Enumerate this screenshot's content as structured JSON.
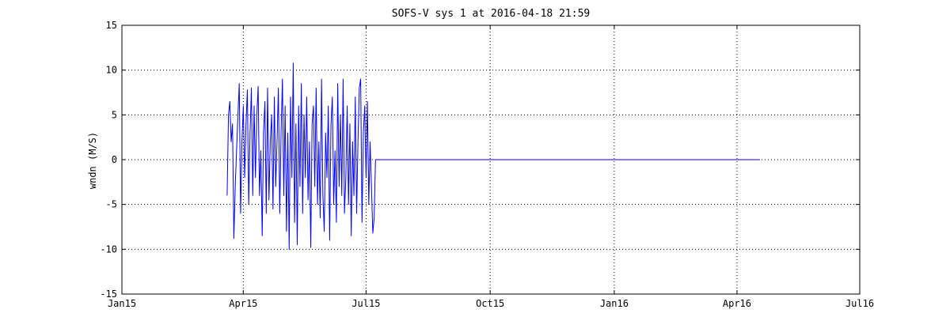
{
  "chart_data": {
    "type": "line",
    "title": "SOFS-V sys 1 at 2016-04-18 21:59",
    "xlabel": "",
    "ylabel": "wndn (M/S)",
    "xlim": [
      "2015-01-01",
      "2016-07-01"
    ],
    "ylim": [
      -15,
      15
    ],
    "x_ticks": [
      {
        "date": "2015-01-01",
        "label": "Jan15"
      },
      {
        "date": "2015-04-01",
        "label": "Apr15"
      },
      {
        "date": "2015-07-01",
        "label": "Jul15"
      },
      {
        "date": "2015-10-01",
        "label": "Oct15"
      },
      {
        "date": "2016-01-01",
        "label": "Jan16"
      },
      {
        "date": "2016-04-01",
        "label": "Apr16"
      },
      {
        "date": "2016-07-01",
        "label": "Jul16"
      }
    ],
    "y_ticks": [
      -15,
      -10,
      -5,
      0,
      5,
      10,
      15
    ],
    "grid": true,
    "line_color": "#0000ff",
    "series": [
      {
        "x": [
          "2015-03-20",
          "2015-03-21",
          "2015-03-22",
          "2015-03-23",
          "2015-03-24",
          "2015-03-25",
          "2015-03-26",
          "2015-03-27",
          "2015-03-28",
          "2015-03-29",
          "2015-03-30",
          "2015-03-31",
          "2015-04-01",
          "2015-04-02",
          "2015-04-03",
          "2015-04-04",
          "2015-04-05",
          "2015-04-06",
          "2015-04-07",
          "2015-04-08",
          "2015-04-09",
          "2015-04-10",
          "2015-04-11",
          "2015-04-12",
          "2015-04-13",
          "2015-04-14",
          "2015-04-15",
          "2015-04-16",
          "2015-04-17",
          "2015-04-18",
          "2015-04-19",
          "2015-04-20",
          "2015-04-21",
          "2015-04-22",
          "2015-04-23",
          "2015-04-24",
          "2015-04-25",
          "2015-04-26",
          "2015-04-27",
          "2015-04-28",
          "2015-04-29",
          "2015-04-30",
          "2015-05-01",
          "2015-05-02",
          "2015-05-03",
          "2015-05-04",
          "2015-05-05",
          "2015-05-06",
          "2015-05-07",
          "2015-05-08",
          "2015-05-09",
          "2015-05-10",
          "2015-05-11",
          "2015-05-12",
          "2015-05-13",
          "2015-05-14",
          "2015-05-15",
          "2015-05-16",
          "2015-05-17",
          "2015-05-18",
          "2015-05-19",
          "2015-05-20",
          "2015-05-21",
          "2015-05-22",
          "2015-05-23",
          "2015-05-24",
          "2015-05-25",
          "2015-05-26",
          "2015-05-27",
          "2015-05-28",
          "2015-05-29",
          "2015-05-30",
          "2015-05-31",
          "2015-06-01",
          "2015-06-02",
          "2015-06-03",
          "2015-06-04",
          "2015-06-05",
          "2015-06-06",
          "2015-06-07",
          "2015-06-08",
          "2015-06-09",
          "2015-06-10",
          "2015-06-11",
          "2015-06-12",
          "2015-06-13",
          "2015-06-14",
          "2015-06-15",
          "2015-06-16",
          "2015-06-17",
          "2015-06-18",
          "2015-06-19",
          "2015-06-20",
          "2015-06-21",
          "2015-06-22",
          "2015-06-23",
          "2015-06-24",
          "2015-06-25",
          "2015-06-26",
          "2015-06-27",
          "2015-06-28",
          "2015-06-29",
          "2015-06-30",
          "2015-07-01",
          "2015-07-02",
          "2015-07-03",
          "2015-07-04",
          "2015-07-05",
          "2015-07-06",
          "2015-07-07",
          "2015-07-08",
          "2015-07-09",
          "2016-04-18"
        ],
        "y": [
          -4,
          5,
          6.5,
          2,
          4,
          -8.8,
          -3,
          1,
          5,
          8.5,
          -6,
          2,
          6,
          -2,
          4,
          7.8,
          -5,
          3,
          8,
          -4,
          6,
          -2,
          5,
          8.2,
          -4,
          1,
          -8.5,
          3,
          6.5,
          -6,
          8,
          -4.5,
          2,
          5,
          -5.5,
          7,
          -3,
          2,
          8,
          -6,
          3,
          9,
          -4,
          6,
          -8,
          3,
          -10,
          7,
          -2,
          10.8,
          -7,
          4,
          -9.5,
          6,
          -3,
          8.5,
          -6,
          5,
          -2,
          7,
          -4.5,
          2,
          -9.8,
          4,
          6,
          -3,
          8,
          -5,
          2,
          -6.5,
          9,
          -4,
          -8,
          3,
          -2,
          6,
          -9,
          4,
          7,
          -5,
          1,
          -7,
          8.5,
          -3,
          5,
          -4,
          9,
          -6,
          -2,
          6,
          -5,
          4,
          -8.5,
          2,
          -4,
          7,
          -6,
          2,
          8,
          9,
          -7,
          3,
          6,
          -2,
          6.5,
          -5,
          2,
          -3,
          -8.2,
          -6.5,
          0,
          0,
          0
        ]
      }
    ]
  }
}
